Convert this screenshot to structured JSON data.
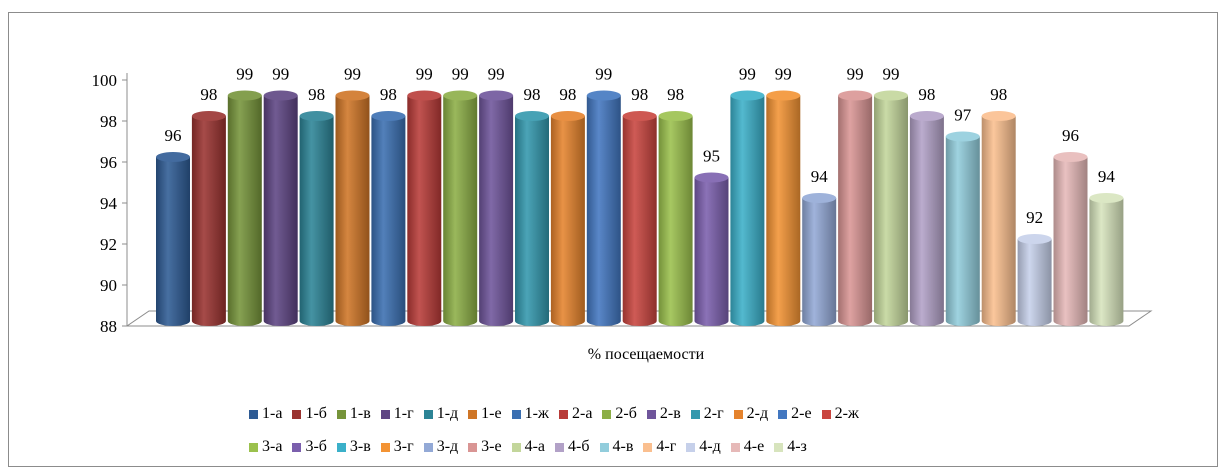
{
  "chart_data": {
    "type": "bar",
    "style": "3d-cylinder",
    "xlabel": "% посещаемости",
    "ylim": [
      88,
      100
    ],
    "yticks": [
      88,
      90,
      92,
      94,
      96,
      98,
      100
    ],
    "grid": false,
    "legend_position": "bottom",
    "series": [
      {
        "name": "1-а",
        "value": 96,
        "color": "#2e5b94"
      },
      {
        "name": "1-б",
        "value": 98,
        "color": "#9a3330"
      },
      {
        "name": "1-в",
        "value": 99,
        "color": "#76943a"
      },
      {
        "name": "1-г",
        "value": 99,
        "color": "#5e4583"
      },
      {
        "name": "1-д",
        "value": 98,
        "color": "#2c8496"
      },
      {
        "name": "1-е",
        "value": 99,
        "color": "#cf7526"
      },
      {
        "name": "1-ж",
        "value": 98,
        "color": "#3a6fb1"
      },
      {
        "name": "2-а",
        "value": 99,
        "color": "#b83b38"
      },
      {
        "name": "2-б",
        "value": 99,
        "color": "#8cae46"
      },
      {
        "name": "2-в",
        "value": 99,
        "color": "#6f559b"
      },
      {
        "name": "2-г",
        "value": 98,
        "color": "#3398ad"
      },
      {
        "name": "2-д",
        "value": 98,
        "color": "#e5832d"
      },
      {
        "name": "2-е",
        "value": 99,
        "color": "#4277c0"
      },
      {
        "name": "2-ж",
        "value": 98,
        "color": "#c9453f"
      },
      {
        "name": "3-а",
        "value": 98,
        "color": "#9bc14d"
      },
      {
        "name": "3-б",
        "value": 95,
        "color": "#7b5fad"
      },
      {
        "name": "3-в",
        "value": 99,
        "color": "#3bb0c9"
      },
      {
        "name": "3-г",
        "value": 99,
        "color": "#f39334"
      },
      {
        "name": "3-д",
        "value": 94,
        "color": "#93a9d6"
      },
      {
        "name": "3-е",
        "value": 99,
        "color": "#d99594"
      },
      {
        "name": "4-а",
        "value": 99,
        "color": "#c3d69b"
      },
      {
        "name": "4-б",
        "value": 98,
        "color": "#b2a1c7"
      },
      {
        "name": "4-в",
        "value": 97,
        "color": "#92cddc"
      },
      {
        "name": "4-г",
        "value": 98,
        "color": "#fabf8f"
      },
      {
        "name": "4-д",
        "value": 92,
        "color": "#c6d0ea"
      },
      {
        "name": "4-е",
        "value": 96,
        "color": "#e6b9b8"
      },
      {
        "name": "4-з",
        "value": 94,
        "color": "#d7e4bd"
      }
    ]
  }
}
